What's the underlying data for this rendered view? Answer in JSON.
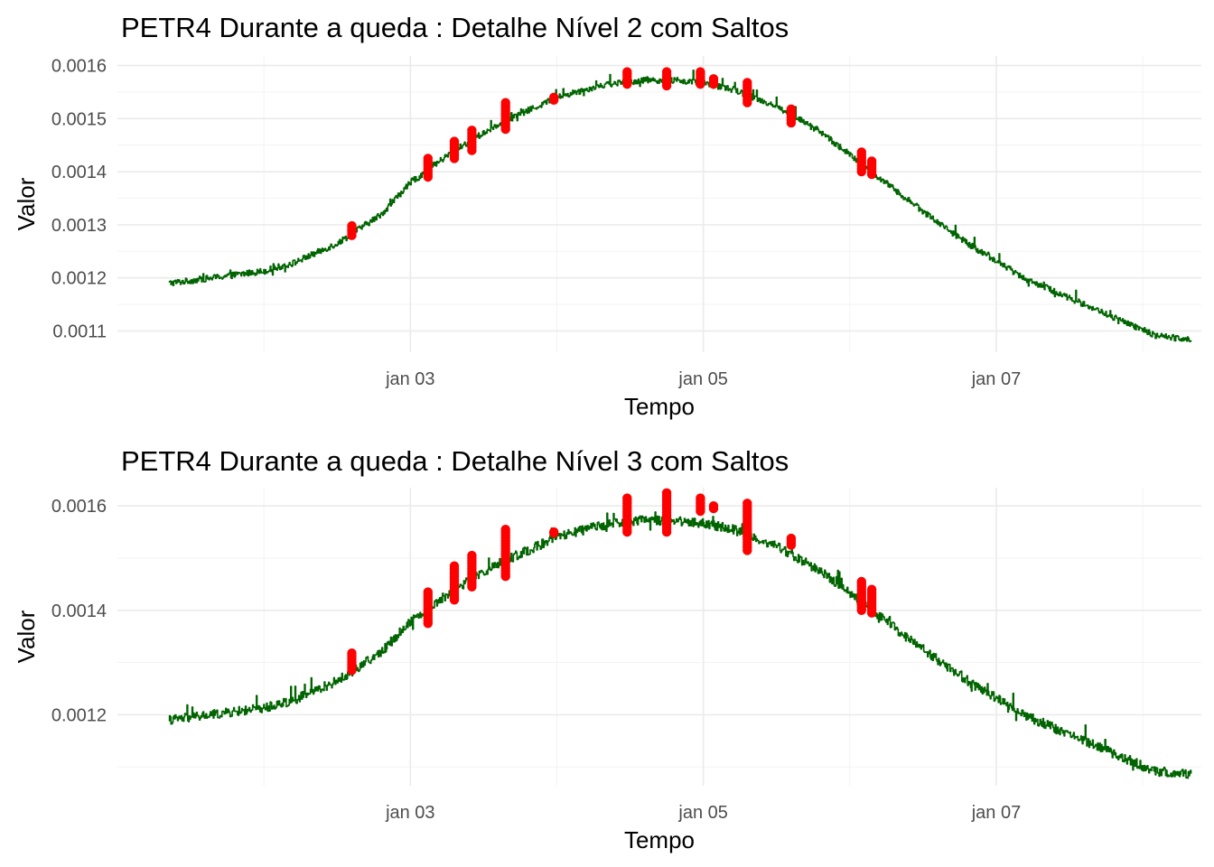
{
  "chart_data": [
    {
      "type": "line",
      "title": "PETR4 Durante a queda : Detalhe Nível 2 com Saltos",
      "xlabel": "Tempo",
      "ylabel": "Valor",
      "x_ticks": [
        "jan 03",
        "jan 05",
        "jan 07"
      ],
      "y_ticks": [
        "0.0011",
        "0.0012",
        "0.0013",
        "0.0014",
        "0.0015",
        "0.0016"
      ],
      "xlim_days": [
        1.0,
        8.4
      ],
      "ylim": [
        0.00106,
        0.001618
      ],
      "grid": true,
      "line_color": "#006400",
      "jump_color": "#ff0000",
      "noise": 1.2e-05,
      "series": [
        {
          "x_days": [
            1.35,
            1.5,
            1.7,
            2.0,
            2.2,
            2.5,
            2.8,
            3.0,
            3.3,
            3.6,
            4.0,
            4.3,
            4.6,
            4.8,
            5.0,
            5.2,
            5.5,
            5.8,
            6.2,
            6.5,
            6.8,
            7.2,
            7.6,
            7.9,
            8.1,
            8.33
          ],
          "y": [
            0.00119,
            0.001195,
            0.001202,
            0.001213,
            0.001228,
            0.001265,
            0.00132,
            0.00138,
            0.00144,
            0.00149,
            0.00154,
            0.001563,
            0.001573,
            0.001572,
            0.001567,
            0.001555,
            0.001523,
            0.001475,
            0.001388,
            0.001325,
            0.001265,
            0.001198,
            0.00115,
            0.001113,
            0.00109,
            0.001085
          ]
        }
      ],
      "jumps": [
        {
          "x_day": 2.6,
          "y_min": 0.00128,
          "y_max": 0.001298
        },
        {
          "x_day": 3.12,
          "y_min": 0.00139,
          "y_max": 0.001425
        },
        {
          "x_day": 3.3,
          "y_min": 0.001425,
          "y_max": 0.001457
        },
        {
          "x_day": 3.42,
          "y_min": 0.00144,
          "y_max": 0.001478
        },
        {
          "x_day": 3.65,
          "y_min": 0.00148,
          "y_max": 0.00153
        },
        {
          "x_day": 3.98,
          "y_min": 0.001535,
          "y_max": 0.00154
        },
        {
          "x_day": 4.48,
          "y_min": 0.001565,
          "y_max": 0.001588
        },
        {
          "x_day": 4.75,
          "y_min": 0.001562,
          "y_max": 0.001588
        },
        {
          "x_day": 4.98,
          "y_min": 0.001565,
          "y_max": 0.001588
        },
        {
          "x_day": 5.07,
          "y_min": 0.001565,
          "y_max": 0.001575
        },
        {
          "x_day": 5.3,
          "y_min": 0.00153,
          "y_max": 0.001568
        },
        {
          "x_day": 5.6,
          "y_min": 0.001492,
          "y_max": 0.001518
        },
        {
          "x_day": 6.08,
          "y_min": 0.0014,
          "y_max": 0.001437
        },
        {
          "x_day": 6.15,
          "y_min": 0.001395,
          "y_max": 0.00142
        }
      ]
    },
    {
      "type": "line",
      "title": "PETR4 Durante a queda : Detalhe Nível 3 com Saltos",
      "xlabel": "Tempo",
      "ylabel": "Valor",
      "x_ticks": [
        "jan 03",
        "jan 05",
        "jan 07"
      ],
      "y_ticks": [
        "0.0012",
        "0.0014",
        "0.0016"
      ],
      "xlim_days": [
        1.0,
        8.4
      ],
      "ylim": [
        0.001064,
        0.001635
      ],
      "grid": true,
      "line_color": "#006400",
      "jump_color": "#ff0000",
      "noise": 1.8e-05,
      "series": [
        {
          "x_days": [
            1.35,
            1.5,
            1.7,
            2.0,
            2.2,
            2.5,
            2.8,
            3.0,
            3.3,
            3.6,
            4.0,
            4.3,
            4.6,
            4.8,
            5.0,
            5.2,
            5.5,
            5.8,
            6.2,
            6.5,
            6.8,
            7.2,
            7.6,
            7.9,
            8.1,
            8.33
          ],
          "y": [
            0.00119,
            0.001195,
            0.001202,
            0.001213,
            0.001228,
            0.001265,
            0.00132,
            0.00138,
            0.00144,
            0.00149,
            0.00154,
            0.001563,
            0.001573,
            0.001572,
            0.001567,
            0.001555,
            0.001523,
            0.001475,
            0.001388,
            0.001325,
            0.001265,
            0.001198,
            0.00115,
            0.001113,
            0.00109,
            0.001085
          ]
        }
      ],
      "jumps": [
        {
          "x_day": 2.6,
          "y_min": 0.001285,
          "y_max": 0.001318
        },
        {
          "x_day": 3.12,
          "y_min": 0.001375,
          "y_max": 0.001435
        },
        {
          "x_day": 3.3,
          "y_min": 0.00142,
          "y_max": 0.001485
        },
        {
          "x_day": 3.42,
          "y_min": 0.001445,
          "y_max": 0.001505
        },
        {
          "x_day": 3.65,
          "y_min": 0.001465,
          "y_max": 0.001555
        },
        {
          "x_day": 3.98,
          "y_min": 0.001548,
          "y_max": 0.00155
        },
        {
          "x_day": 4.48,
          "y_min": 0.00155,
          "y_max": 0.001615
        },
        {
          "x_day": 4.75,
          "y_min": 0.00155,
          "y_max": 0.001625
        },
        {
          "x_day": 4.98,
          "y_min": 0.00159,
          "y_max": 0.001615
        },
        {
          "x_day": 5.07,
          "y_min": 0.001595,
          "y_max": 0.0016
        },
        {
          "x_day": 5.3,
          "y_min": 0.001515,
          "y_max": 0.001605
        },
        {
          "x_day": 5.6,
          "y_min": 0.001525,
          "y_max": 0.001538
        },
        {
          "x_day": 6.08,
          "y_min": 0.0014,
          "y_max": 0.001455
        },
        {
          "x_day": 6.15,
          "y_min": 0.001395,
          "y_max": 0.00144
        }
      ]
    }
  ]
}
